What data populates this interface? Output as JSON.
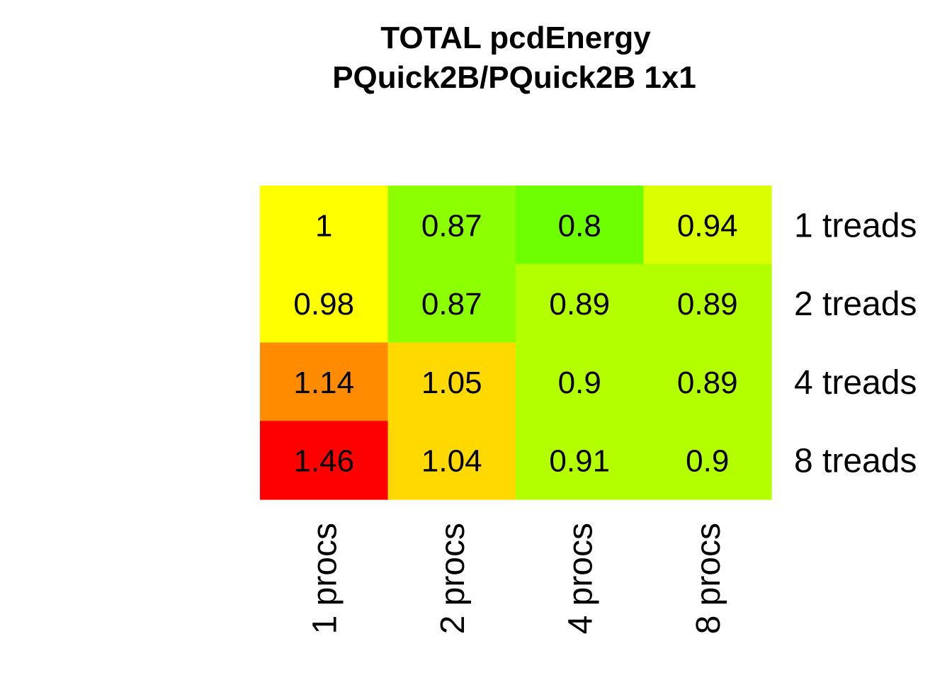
{
  "chart_data": {
    "type": "heatmap",
    "title": "TOTAL  pcdEnergy",
    "subtitle": "PQuick2B/PQuick2B 1x1",
    "columns": [
      "1 procs",
      "2 procs",
      "4 procs",
      "8 procs"
    ],
    "rows": [
      "1 treads",
      "2 treads",
      "4 treads",
      "8 treads"
    ],
    "values": [
      [
        1,
        0.87,
        0.8,
        0.94
      ],
      [
        0.98,
        0.87,
        0.89,
        0.89
      ],
      [
        1.14,
        1.05,
        0.9,
        0.89
      ],
      [
        1.46,
        1.04,
        0.91,
        0.9
      ]
    ],
    "labels": [
      [
        "1",
        "0.87",
        "0.8",
        "0.94"
      ],
      [
        "0.98",
        "0.87",
        "0.89",
        "0.89"
      ],
      [
        "1.14",
        "1.05",
        "0.9",
        "0.89"
      ],
      [
        "1.46",
        "1.04",
        "0.91",
        "0.9"
      ]
    ],
    "colors": [
      [
        "#ffff00",
        "#8cff00",
        "#6eff00",
        "#d9ff00"
      ],
      [
        "#ffff00",
        "#8cff00",
        "#b3ff00",
        "#b3ff00"
      ],
      [
        "#ff8c00",
        "#ffd900",
        "#b3ff00",
        "#b3ff00"
      ],
      [
        "#ff0000",
        "#ffd900",
        "#b3ff00",
        "#b3ff00"
      ]
    ],
    "legend": "none",
    "grid": false
  }
}
